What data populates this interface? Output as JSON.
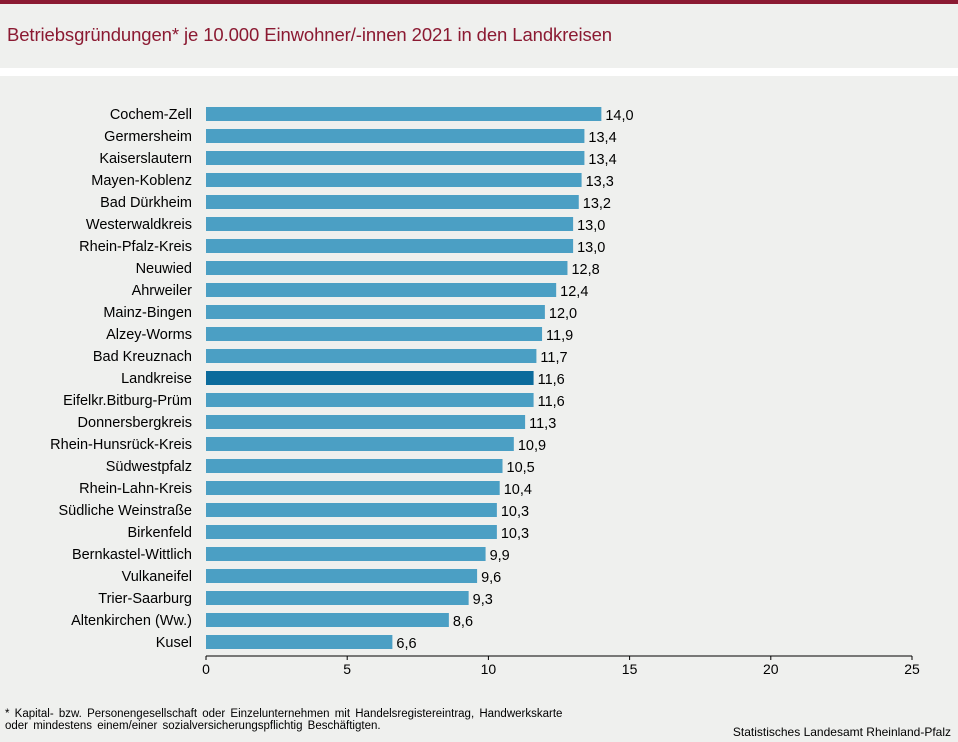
{
  "title": "Betriebsgründungen* je 10.000 Einwohner/-innen 2021 in den Landkreisen",
  "colors": {
    "brand": "#8b1a32",
    "bar": "#4b9fc4",
    "bar_highlight": "#0c6b9c",
    "background": "#eff0ee"
  },
  "chart_data": {
    "type": "bar",
    "orientation": "horizontal",
    "title": "Betriebsgründungen* je 10.000 Einwohner/-innen 2021 in den Landkreisen",
    "xlabel": "",
    "ylabel": "",
    "xlim": [
      0,
      25
    ],
    "xticks": [
      0,
      5,
      10,
      15,
      20,
      25
    ],
    "grid": false,
    "highlight": "Landkreise",
    "categories": [
      "Cochem-Zell",
      "Germersheim",
      "Kaiserslautern",
      "Mayen-Koblenz",
      "Bad Dürkheim",
      "Westerwaldkreis",
      "Rhein-Pfalz-Kreis",
      "Neuwied",
      "Ahrweiler",
      "Mainz-Bingen",
      "Alzey-Worms",
      "Bad Kreuznach",
      "Landkreise",
      "Eifelkr.Bitburg-Prüm",
      "Donnersbergkreis",
      "Rhein-Hunsrück-Kreis",
      "Südwestpfalz",
      "Rhein-Lahn-Kreis",
      "Südliche Weinstraße",
      "Birkenfeld",
      "Bernkastel-Wittlich",
      "Vulkaneifel",
      "Trier-Saarburg",
      "Altenkirchen (Ww.)",
      "Kusel"
    ],
    "values": [
      14.0,
      13.4,
      13.4,
      13.3,
      13.2,
      13.0,
      13.0,
      12.8,
      12.4,
      12.0,
      11.9,
      11.7,
      11.6,
      11.6,
      11.3,
      10.9,
      10.5,
      10.4,
      10.3,
      10.3,
      9.9,
      9.6,
      9.3,
      8.6,
      6.6
    ],
    "value_labels": [
      "14,0",
      "13,4",
      "13,4",
      "13,3",
      "13,2",
      "13,0",
      "13,0",
      "12,8",
      "12,4",
      "12,0",
      "11,9",
      "11,7",
      "11,6",
      "11,6",
      "11,3",
      "10,9",
      "10,5",
      "10,4",
      "10,3",
      "10,3",
      "9,9",
      "9,6",
      "9,3",
      "8,6",
      "6,6"
    ]
  },
  "footnote": "* Kapital- bzw. Personengesellschaft oder Einzelunternehmen mit Handelsregistereintrag, Handwerkskarte oder mindestens einem/einer sozialversicherungspflichtig Beschäftigten.",
  "source": "Statistisches Landesamt Rheinland-Pfalz"
}
